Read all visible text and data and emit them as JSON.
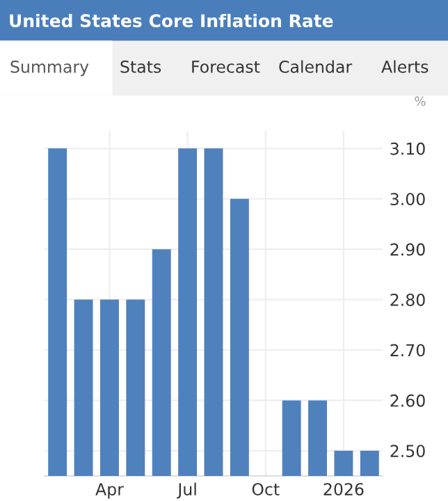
{
  "chart_data": {
    "type": "bar",
    "title": "United States Core Inflation Rate",
    "annotations": [
      "Summary",
      "Stats",
      "Forecast",
      "Calendar",
      "Alerts"
    ],
    "ylabel": "%",
    "categories": [
      null,
      null,
      "Apr",
      null,
      null,
      "Jul",
      null,
      null,
      "Oct",
      null,
      null,
      "2026",
      null
    ],
    "values": [
      3.1,
      2.8,
      2.8,
      2.8,
      2.9,
      3.1,
      3.1,
      3.0,
      null,
      2.6,
      2.6,
      2.5,
      2.5
    ],
    "color": "#4f81bd",
    "ylim": [
      2.45,
      3.135
    ],
    "yticks": [
      {
        "value": 2.5,
        "label": "2.50"
      },
      {
        "value": 2.6,
        "label": "2.60"
      },
      {
        "value": 2.7,
        "label": "2.70"
      },
      {
        "value": 2.8,
        "label": "2.80"
      },
      {
        "value": 2.9,
        "label": "2.90"
      },
      {
        "value": 3.0,
        "label": "3.00"
      },
      {
        "value": 3.1,
        "label": "3.10"
      }
    ],
    "grid": true,
    "legend": false
  }
}
